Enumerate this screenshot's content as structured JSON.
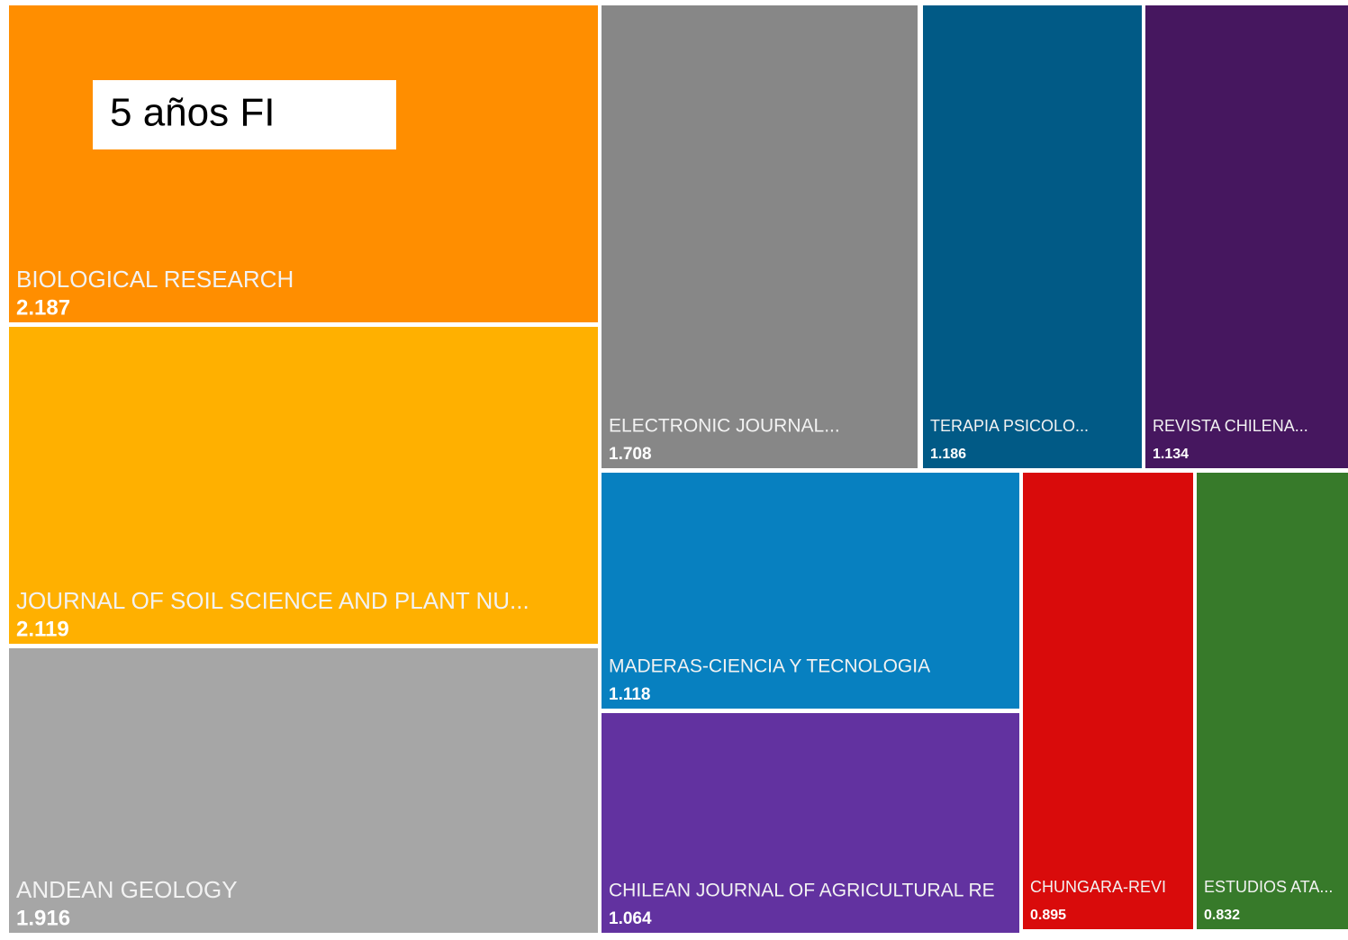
{
  "chart_data": {
    "type": "treemap",
    "title": "5 años FI",
    "categories": [
      "BIOLOGICAL RESEARCH",
      "JOURNAL OF SOIL SCIENCE AND PLANT NU...",
      "ANDEAN GEOLOGY",
      "ELECTRONIC JOURNAL...",
      "TERAPIA PSICOLO...",
      "REVISTA CHILENA...",
      "MADERAS-CIENCIA Y TECNOLOGIA",
      "CHILEAN JOURNAL OF AGRICULTURAL RE",
      "CHUNGARA-REVI",
      "ESTUDIOS ATA..."
    ],
    "values": [
      2.187,
      2.119,
      1.916,
      1.708,
      1.186,
      1.134,
      1.118,
      1.064,
      0.895,
      0.832
    ],
    "colors": [
      "#ff8e00",
      "#ffb000",
      "#a6a6a6",
      "#878787",
      "#015a86",
      "#46175f",
      "#0780c0",
      "#6232a0",
      "#d90b0b",
      "#377a2a"
    ]
  }
}
